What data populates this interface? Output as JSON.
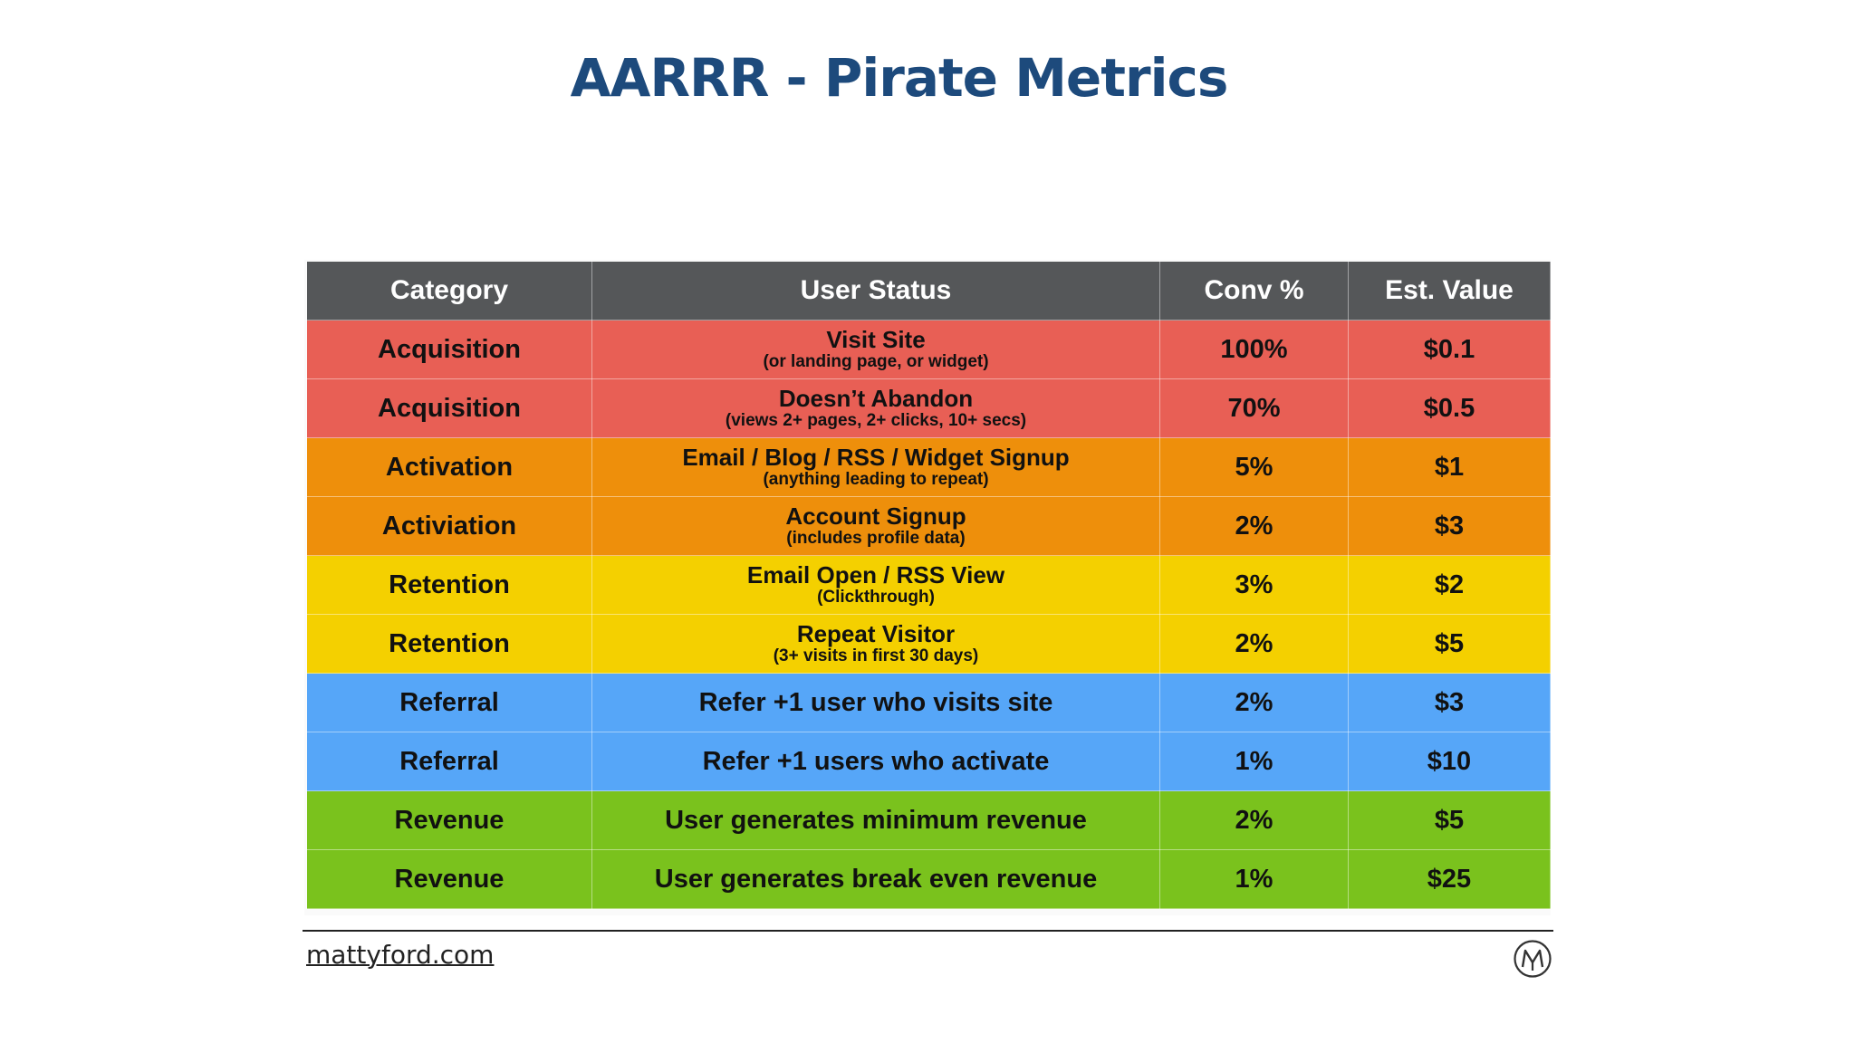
{
  "slide": {
    "title": "AARRR - Pirate Metrics",
    "footer_site": "mattyford.com"
  },
  "colors": {
    "title": "#1d4a7c",
    "header": "#555759",
    "acquisition": "#e85f55",
    "activation": "#ee8f0b",
    "retention": "#f4d000",
    "referral": "#56a6f8",
    "revenue": "#7ac21d"
  },
  "table": {
    "headers": [
      "Category",
      "User Status",
      "Conv %",
      "Est. Value"
    ],
    "rows": [
      {
        "category": "Acquisition",
        "status": "Visit Site",
        "status_sub": "(or landing page, or widget)",
        "conv": "100%",
        "value": "$0.1",
        "color": "#e85f55"
      },
      {
        "category": "Acquisition",
        "status": "Doesn’t Abandon",
        "status_sub": "(views 2+ pages, 2+ clicks, 10+ secs)",
        "conv": "70%",
        "value": "$0.5",
        "color": "#e85f55"
      },
      {
        "category": "Activation",
        "status": "Email / Blog / RSS / Widget Signup",
        "status_sub": "(anything leading to repeat)",
        "conv": "5%",
        "value": "$1",
        "color": "#ee8f0b"
      },
      {
        "category": "Activiation",
        "status": "Account Signup",
        "status_sub": "(includes profile data)",
        "conv": "2%",
        "value": "$3",
        "color": "#ee8f0b"
      },
      {
        "category": "Retention",
        "status": "Email Open / RSS View",
        "status_sub": "(Clickthrough)",
        "conv": "3%",
        "value": "$2",
        "color": "#f4d000"
      },
      {
        "category": "Retention",
        "status": "Repeat Visitor",
        "status_sub": "(3+ visits in first 30 days)",
        "conv": "2%",
        "value": "$5",
        "color": "#f4d000"
      },
      {
        "category": "Referral",
        "status": "Refer +1 user who visits site",
        "status_sub": "",
        "conv": "2%",
        "value": "$3",
        "color": "#56a6f8"
      },
      {
        "category": "Referral",
        "status": "Refer +1 users who activate",
        "status_sub": "",
        "conv": "1%",
        "value": "$10",
        "color": "#56a6f8"
      },
      {
        "category": "Revenue",
        "status": "User generates minimum revenue",
        "status_sub": "",
        "conv": "2%",
        "value": "$5",
        "color": "#7ac21d"
      },
      {
        "category": "Revenue",
        "status": "User generates break even revenue",
        "status_sub": "",
        "conv": "1%",
        "value": "$25",
        "color": "#7ac21d"
      }
    ]
  },
  "logo": {
    "icon": "mattyford-monogram-icon",
    "glyph": "M"
  }
}
